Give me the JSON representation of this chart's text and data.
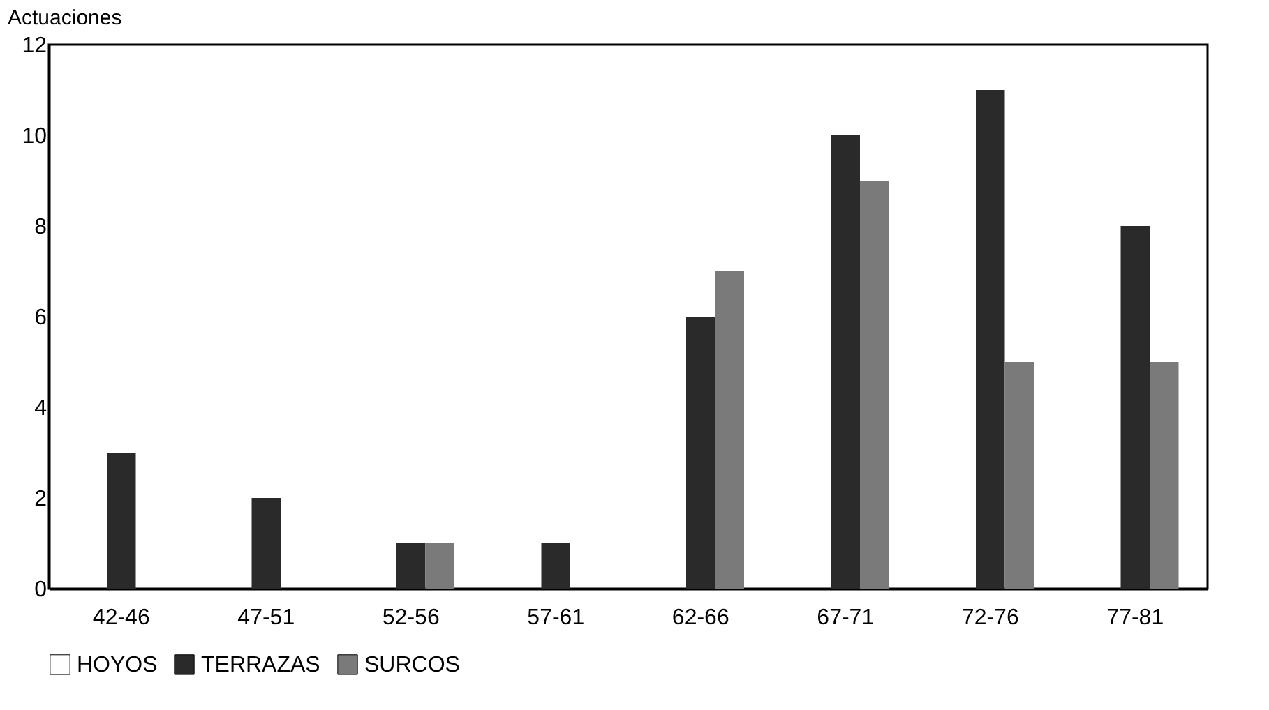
{
  "chart_data": {
    "type": "bar",
    "ylabel": "Actuaciones",
    "categories": [
      "42-46",
      "47-51",
      "52-56",
      "57-61",
      "62-66",
      "67-71",
      "72-76",
      "77-81"
    ],
    "series": [
      {
        "name": "HOYOS",
        "color": "#ffffff",
        "values": [
          0,
          0,
          0,
          0,
          0,
          0,
          0,
          0
        ]
      },
      {
        "name": "TERRAZAS",
        "color": "#2a2a2a",
        "values": [
          3,
          2,
          1,
          1,
          6,
          10,
          11,
          8
        ]
      },
      {
        "name": "SURCOS",
        "color": "#7a7a7a",
        "values": [
          0,
          0,
          1,
          0,
          7,
          9,
          5,
          5
        ]
      }
    ],
    "ylim": [
      0,
      12
    ],
    "yticks": [
      0,
      2,
      4,
      6,
      8,
      10,
      12
    ],
    "grid": false,
    "legend": "bottom"
  }
}
